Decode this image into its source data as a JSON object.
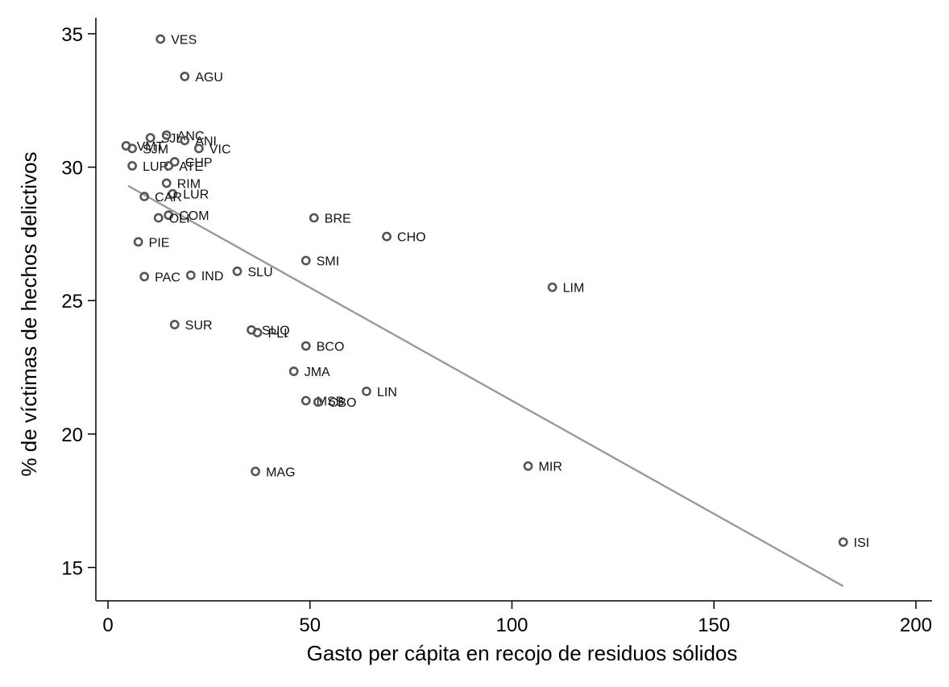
{
  "chart_data": {
    "type": "scatter",
    "xlabel": "Gasto per cápita en recojo de residuos sólidos",
    "ylabel": "% de víctimas de hechos delictivos",
    "xlim": [
      -3,
      204
    ],
    "ylim": [
      13.75,
      35.6
    ],
    "xticks": [
      0,
      50,
      100,
      150,
      200
    ],
    "yticks": [
      15,
      20,
      25,
      30,
      35
    ],
    "grid": false,
    "points": [
      {
        "label": "VES",
        "x": 13,
        "y": 34.8
      },
      {
        "label": "AGU",
        "x": 19,
        "y": 33.4
      },
      {
        "label": "SJL",
        "x": 10.5,
        "y": 31.1
      },
      {
        "label": "ANC",
        "x": 14.5,
        "y": 31.2
      },
      {
        "label": "ANI",
        "x": 19,
        "y": 31.0
      },
      {
        "label": "VMT",
        "x": 4.5,
        "y": 30.8
      },
      {
        "label": "SJM",
        "x": 6,
        "y": 30.7
      },
      {
        "label": "VIC",
        "x": 22.5,
        "y": 30.7
      },
      {
        "label": "LUR",
        "x": 6,
        "y": 30.05
      },
      {
        "label": "ATE",
        "x": 15,
        "y": 30.05
      },
      {
        "label": "CHP",
        "x": 16.5,
        "y": 30.2
      },
      {
        "label": "RIM",
        "x": 14.5,
        "y": 29.4
      },
      {
        "label": "LUR",
        "x": 16,
        "y": 29.0
      },
      {
        "label": "CAR",
        "x": 9,
        "y": 28.9
      },
      {
        "label": "COM",
        "x": 15,
        "y": 28.2
      },
      {
        "label": "OLI",
        "x": 12.5,
        "y": 28.1
      },
      {
        "label": "BRE",
        "x": 51,
        "y": 28.1
      },
      {
        "label": "CHO",
        "x": 69,
        "y": 27.4
      },
      {
        "label": "PIE",
        "x": 7.5,
        "y": 27.2
      },
      {
        "label": "SMI",
        "x": 49,
        "y": 26.5
      },
      {
        "label": "SLU",
        "x": 32,
        "y": 26.1
      },
      {
        "label": "PAC",
        "x": 9,
        "y": 25.9
      },
      {
        "label": "IND",
        "x": 20.5,
        "y": 25.95
      },
      {
        "label": "LIM",
        "x": 110,
        "y": 25.5
      },
      {
        "label": "SUR",
        "x": 16.5,
        "y": 24.1
      },
      {
        "label": "SUQ",
        "x": 35.5,
        "y": 23.9
      },
      {
        "label": "PLI",
        "x": 37,
        "y": 23.8
      },
      {
        "label": "BCO",
        "x": 49,
        "y": 23.3
      },
      {
        "label": "JMA",
        "x": 46,
        "y": 22.35
      },
      {
        "label": "LIN",
        "x": 64,
        "y": 21.6
      },
      {
        "label": "MSB",
        "x": 49,
        "y": 21.25
      },
      {
        "label": "CBO",
        "x": 52,
        "y": 21.2
      },
      {
        "label": "MAG",
        "x": 36.5,
        "y": 18.6
      },
      {
        "label": "MIR",
        "x": 104,
        "y": 18.8
      },
      {
        "label": "ISI",
        "x": 182,
        "y": 15.95
      }
    ],
    "fit_line": {
      "x": [
        5,
        182
      ],
      "y": [
        29.3,
        14.3
      ]
    }
  },
  "colors": {
    "marker": "#555555",
    "fit_line": "#9a9a9a",
    "axis": "#000000"
  }
}
